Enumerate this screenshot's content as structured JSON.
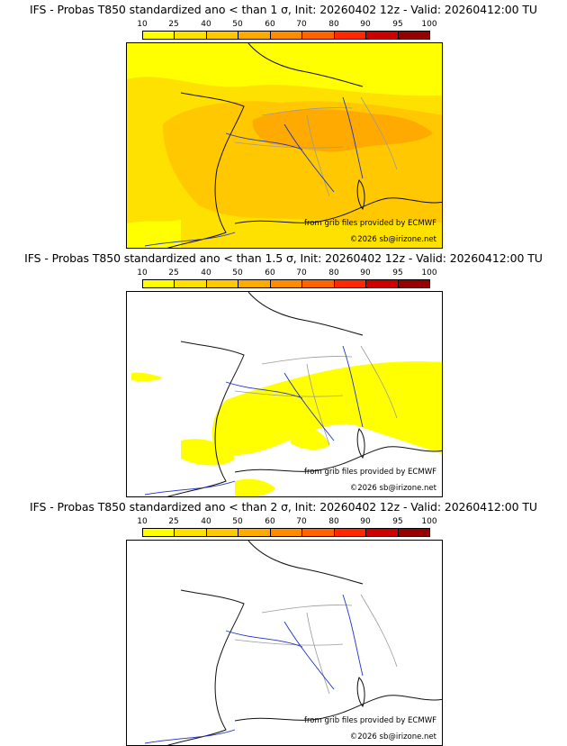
{
  "colorbar": {
    "ticks": [
      "10",
      "25",
      "40",
      "50",
      "60",
      "70",
      "80",
      "90",
      "95",
      "100"
    ],
    "colors": [
      "#ffff00",
      "#ffe100",
      "#ffc800",
      "#ffaa00",
      "#ff8c00",
      "#ff6400",
      "#ff2800",
      "#cd0000",
      "#960000",
      "#640000"
    ]
  },
  "colors": {
    "coast": "#111111",
    "rivers": "#2030c8",
    "borders": "#9a9a9a",
    "prob_10": "#ffff00",
    "prob_25": "#ffe100",
    "prob_40": "#ffc800",
    "prob_50": "#ffaa00"
  },
  "panels": [
    {
      "title": "IFS - Probas T850  standardized ano < than 1 σ, Init: 20260402 12z - Valid: 20260412:00 TU",
      "credit_source": "from grib files provided by ECMWF",
      "credit_copy": "©2026 sb@irizone.net"
    },
    {
      "title": "IFS - Probas T850  standardized ano < than 1.5 σ, Init: 20260402 12z - Valid: 20260412:00 TU",
      "credit_source": "from grib files provided by ECMWF",
      "credit_copy": "©2026 sb@irizone.net"
    },
    {
      "title": "IFS - Probas T850  standardized ano < than 2 σ, Init: 20260402 12z - Valid: 20260412:00 TU",
      "credit_source": "from grib files provided by ECMWF",
      "credit_copy": "©2026 sb@irizone.net"
    }
  ]
}
